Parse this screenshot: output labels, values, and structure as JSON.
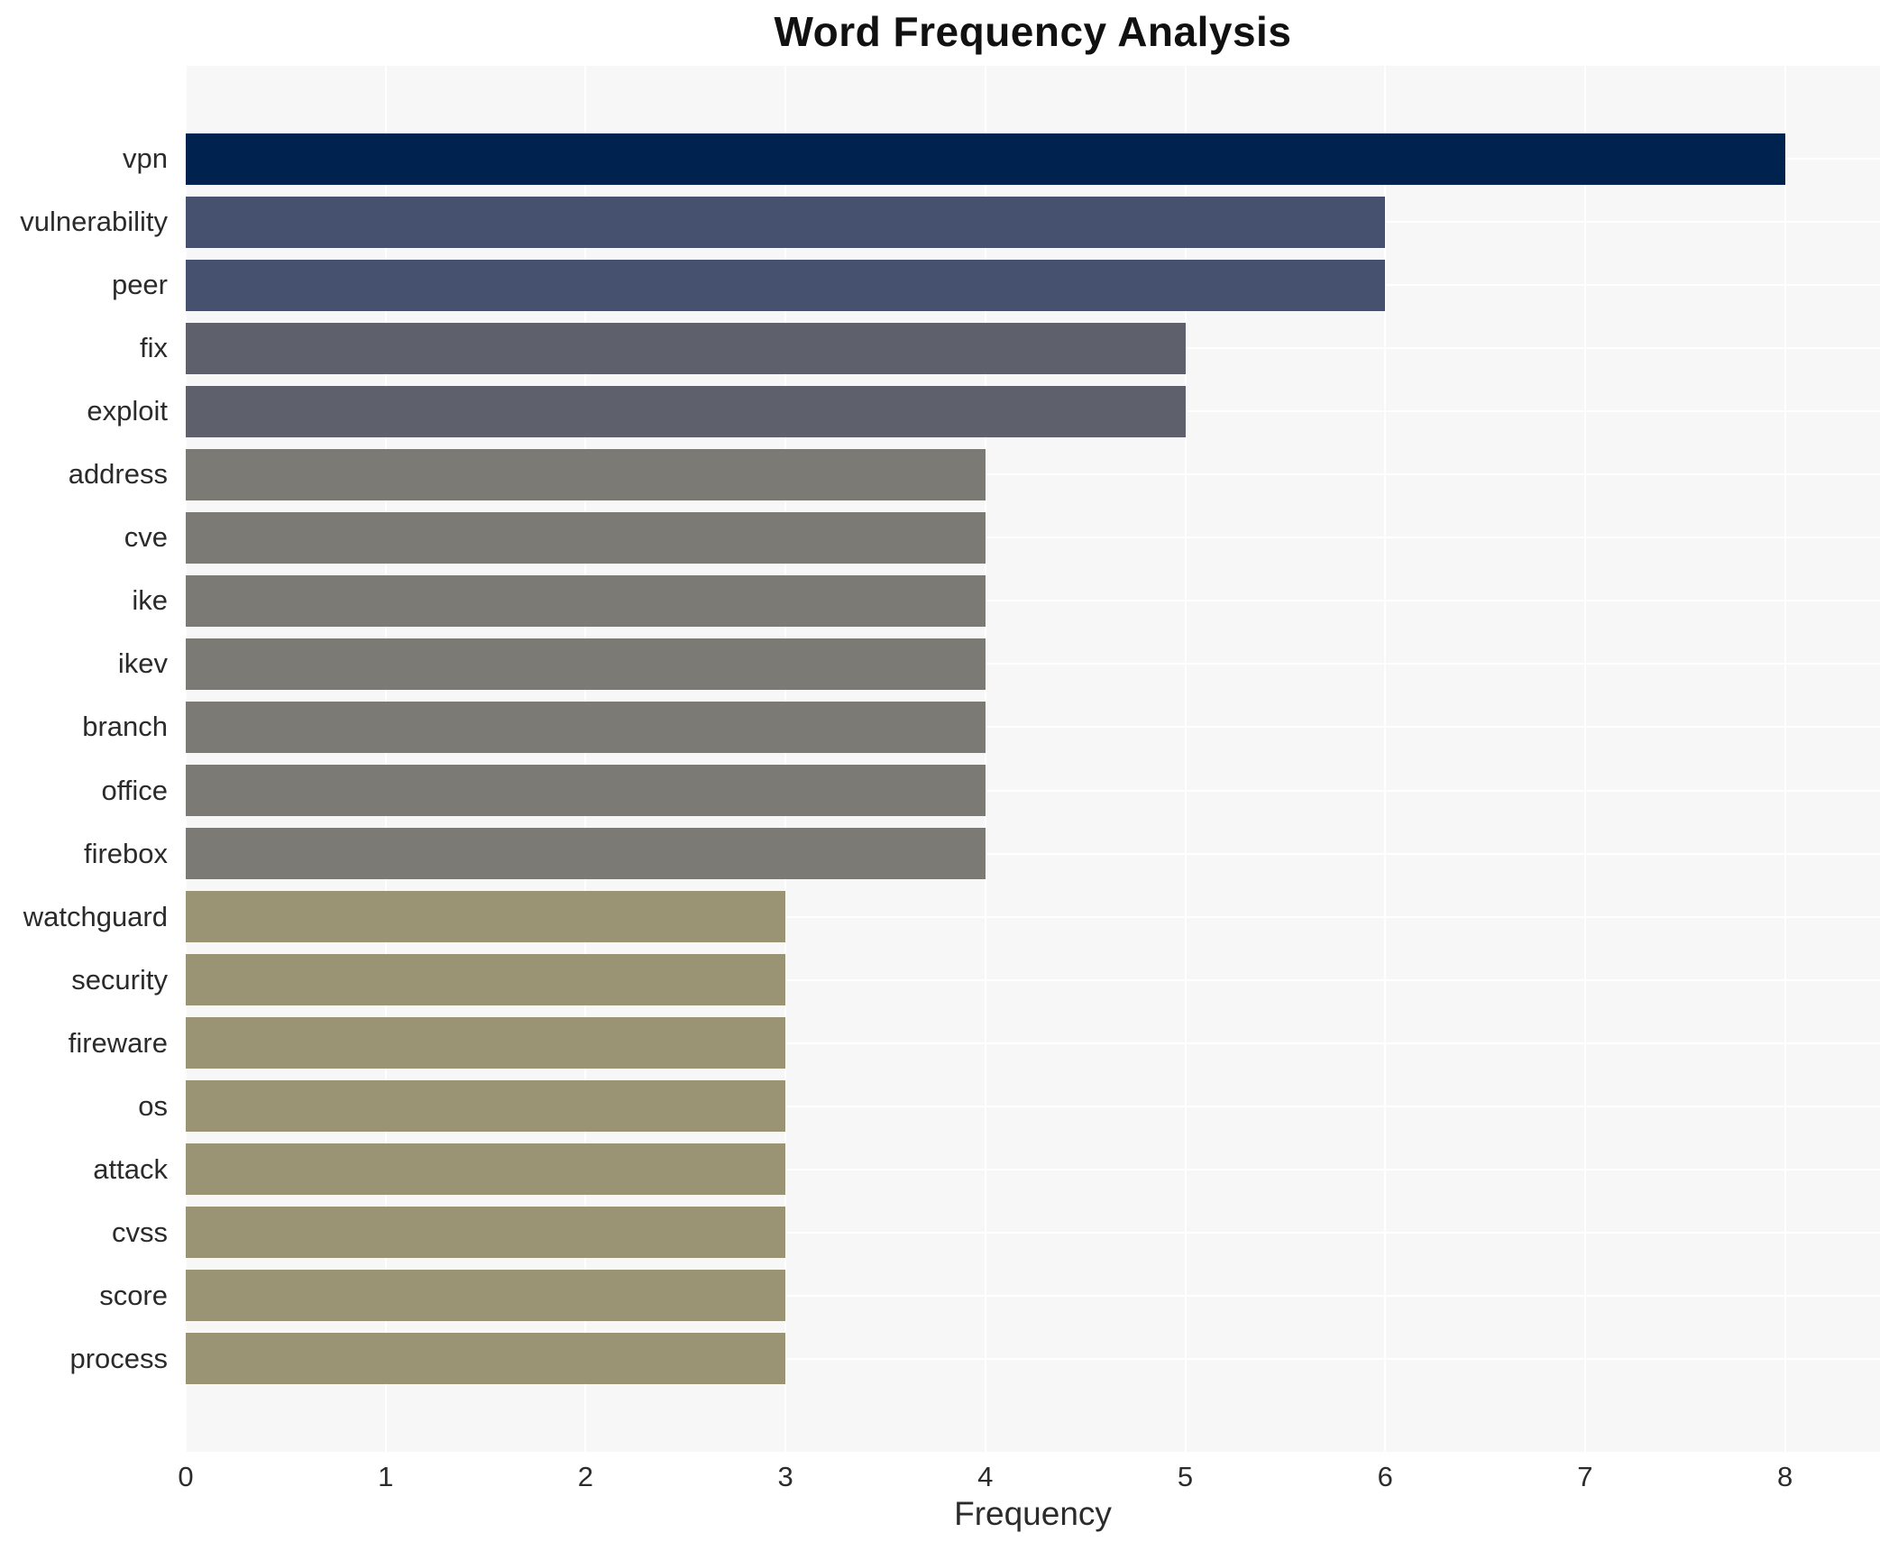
{
  "chart_data": {
    "type": "bar",
    "orientation": "horizontal",
    "title": "Word Frequency Analysis",
    "xlabel": "Frequency",
    "ylabel": "",
    "categories": [
      "vpn",
      "vulnerability",
      "peer",
      "fix",
      "exploit",
      "address",
      "cve",
      "ike",
      "ikev",
      "branch",
      "office",
      "firebox",
      "watchguard",
      "security",
      "fireware",
      "os",
      "attack",
      "cvss",
      "score",
      "process"
    ],
    "values": [
      8,
      6,
      6,
      5,
      5,
      4,
      4,
      4,
      4,
      4,
      4,
      4,
      3,
      3,
      3,
      3,
      3,
      3,
      3,
      3
    ],
    "bar_colors": [
      "#00224e",
      "#46516f",
      "#46516f",
      "#5e616c",
      "#5e616c",
      "#7b7a75",
      "#7b7a75",
      "#7b7a75",
      "#7b7a75",
      "#7b7a75",
      "#7b7a75",
      "#7b7a75",
      "#9b9474",
      "#9b9474",
      "#9b9474",
      "#9b9474",
      "#9b9474",
      "#9b9474",
      "#9b9474",
      "#9b9474"
    ],
    "xticks": [
      0,
      1,
      2,
      3,
      4,
      5,
      6,
      7,
      8
    ],
    "xlim": [
      0,
      8.43
    ],
    "grid": "on",
    "legend_position": "none",
    "plot_background": "#f7f7f8",
    "gridline_color": "#ffffff",
    "title_color": "#111111",
    "tick_label_color": "#2b2b2b"
  }
}
